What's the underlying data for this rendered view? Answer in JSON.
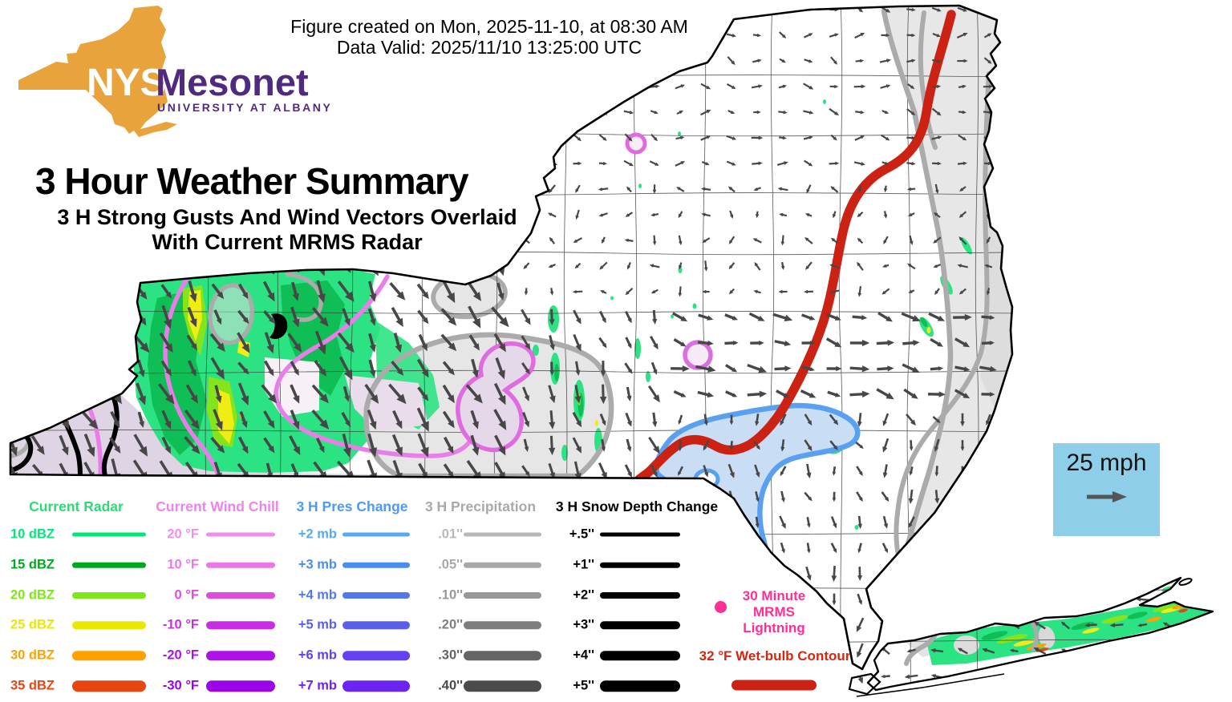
{
  "header": {
    "created_line": "Figure created on Mon, 2025-11-10, at 08:30 AM",
    "valid_line": "Data Valid: 2025/11/10 13:25:00 UTC"
  },
  "logo": {
    "nys": "NYS",
    "mesonet": "Mesonet",
    "university": "UNIVERSITY AT ALBANY",
    "state_color": "#E8A33C",
    "purple": "#4F2A7F"
  },
  "title": "3 Hour Weather Summary",
  "subtitle_line1": "3 H Strong Gusts And Wind Vectors Overlaid",
  "subtitle_line2": "With Current MRMS Radar",
  "wind_scale": {
    "label": "25 mph",
    "bg": "#8FCEE8",
    "arrow_color": "#555555"
  },
  "legend": {
    "columns": [
      {
        "title": "Current Radar",
        "title_color": "#2EDB72",
        "rows": [
          {
            "label": "10 dBZ",
            "color": "#00E87A"
          },
          {
            "label": "15 dBZ",
            "color": "#00A81F"
          },
          {
            "label": "20 dBZ",
            "color": "#7CE817"
          },
          {
            "label": "25 dBZ",
            "color": "#E8E800"
          },
          {
            "label": "30 dBZ",
            "color": "#FFA200"
          },
          {
            "label": "35 dBZ",
            "color": "#E84611"
          }
        ]
      },
      {
        "title": "Current Wind Chill",
        "title_color": "#EE82EE",
        "rows": [
          {
            "label": "20 °F",
            "color": "#EE8FEA"
          },
          {
            "label": "10 °F",
            "color": "#E878E8"
          },
          {
            "label": "0 °F",
            "color": "#DD4CDC"
          },
          {
            "label": "-10 °F",
            "color": "#C72EE4"
          },
          {
            "label": "-20 °F",
            "color": "#AE12E8"
          },
          {
            "label": "-30 °F",
            "color": "#9C04E8"
          }
        ]
      },
      {
        "title": "3 H Pres Change",
        "title_color": "#4D9AF5",
        "rows": [
          {
            "label": "+2 mb",
            "color": "#56AAF5"
          },
          {
            "label": "+3 mb",
            "color": "#4B8CF0"
          },
          {
            "label": "+4 mb",
            "color": "#5377EE"
          },
          {
            "label": "+5 mb",
            "color": "#5A5EEA"
          },
          {
            "label": "+6 mb",
            "color": "#6340F0"
          },
          {
            "label": "+7 mb",
            "color": "#6C24F2"
          }
        ]
      },
      {
        "title": "3 H Precipitation",
        "title_color": "#A9A9A9",
        "rows": [
          {
            "label": ".01''",
            "color": "#B8B8B8"
          },
          {
            "label": ".05''",
            "color": "#A8A8A8"
          },
          {
            "label": ".10''",
            "color": "#989898"
          },
          {
            "label": ".20''",
            "color": "#7E7E7E"
          },
          {
            "label": ".30''",
            "color": "#646464"
          },
          {
            "label": ".40''",
            "color": "#4B4B4B"
          }
        ]
      },
      {
        "title": "3 H Snow Depth Change",
        "title_color": "#000000",
        "rows": [
          {
            "label": "+.5''",
            "color": "#000000"
          },
          {
            "label": "+1''",
            "color": "#000000"
          },
          {
            "label": "+2''",
            "color": "#000000"
          },
          {
            "label": "+3''",
            "color": "#000000"
          },
          {
            "label": "+4''",
            "color": "#000000"
          },
          {
            "label": "+5''",
            "color": "#000000"
          }
        ]
      }
    ],
    "lightning": {
      "lines": [
        "30 Minute",
        "MRMS",
        "Lightning"
      ],
      "color": "#FF2E93"
    },
    "wetbulb": {
      "label": "32 °F Wet-bulb Contour",
      "text_color": "#D8250F",
      "line_color": "#CC2214"
    }
  },
  "map": {
    "outline_color": "#000000",
    "county_color": "#3A3A3A",
    "arrow_color": "#474747",
    "radar_colors": {
      "light": "#2CE383",
      "green": "#0FBE54",
      "yellowgreen": "#86E41C",
      "yellow": "#F0EC16",
      "orange": "#FFA200",
      "orangered": "#E84611"
    },
    "windchill_contour": "#E87FE8",
    "windchill_loop": "#E06AE0",
    "windchill_fill": "#DFD4E3",
    "windchill_fill_light": "#E5D9E9",
    "precip_contour": "#ABABAB",
    "precip_fill": "#E7E7E7",
    "precip_fill_dark": "#DBDBDB",
    "pres_contour": "#59A0F0",
    "pres_fill": "#C9DEF5",
    "snow_contour": "#000000",
    "wetbulb_contour": "#CC2214",
    "features": {
      "radar_regions": [
        "western New York",
        "central New York streaks",
        "eastern border specks",
        "Long Island band"
      ],
      "contours": [
        "current wind chill (violet)",
        "3 h pressure change (blue)",
        "3 h precipitation (gray)",
        "3 h snow depth change (black)",
        "32F wet-bulb (red)"
      ]
    },
    "arrow_field": {
      "step": 32,
      "regions": [
        {
          "name": "long-island",
          "test": {
            "xmin": 1085,
            "ymin": 740
          },
          "angle": 192,
          "jitter": 30,
          "len": 14,
          "w": 2.4
        },
        {
          "name": "north",
          "test": {
            "ymax": 210,
            "xmin": 630
          },
          "angle": 10,
          "jitter": 40,
          "len": 12,
          "w": 2.2
        },
        {
          "name": "west-strong",
          "test": {
            "xmax": 635
          },
          "angle": 62,
          "jitter": 14,
          "len": 26,
          "w": 3.6
        },
        {
          "name": "central-north",
          "test": {
            "ymax": 385
          },
          "angle": 150,
          "jitter": 85,
          "len": 11,
          "w": 2.2
        },
        {
          "name": "east-bold-strip",
          "test": {
            "xmin": 840,
            "xmax": 1260,
            "ymax": 505
          },
          "angle": 15,
          "jitter": 20,
          "len": 21,
          "w": 3.4
        },
        {
          "name": "central-south",
          "test": {
            "xmax": 840
          },
          "angle": 72,
          "jitter": 18,
          "len": 20,
          "w": 3.0
        },
        {
          "name": "east-mid",
          "test": {
            "ymax": 620
          },
          "angle": 80,
          "jitter": 40,
          "len": 15,
          "w": 2.6
        },
        {
          "name": "south-east",
          "test": {},
          "angle": 88,
          "jitter": 30,
          "len": 16,
          "w": 2.6
        }
      ]
    }
  }
}
